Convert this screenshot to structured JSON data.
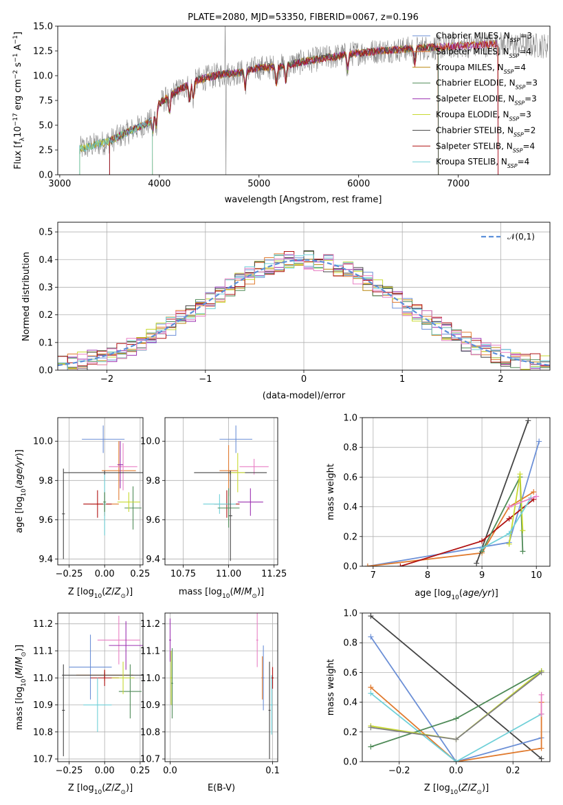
{
  "colors": {
    "miles_chabrier": "#6b8fd6",
    "miles_salpeter": "#e07a2e",
    "miles_kroupa": "#b8860b",
    "elodie_chabrier": "#4e8a57",
    "elodie_salpeter": "#9b30b0",
    "elodie_kroupa": "#c7d92f",
    "stelib_chabrier": "#444444",
    "stelib_salpeter": "#b01010",
    "stelib_kroupa": "#6fd0d8",
    "normal": "#5b8fd9",
    "grid": "#b0b0b0",
    "data": "#808080",
    "pink": "#e87fc4"
  },
  "chart_data": [
    {
      "id": "spectrum",
      "type": "line",
      "title": "PLATE=2080, MJD=53350, FIBERID=0067, z=0.196",
      "xlabel": "wavelength [Angstrom, rest frame]",
      "ylabel": "Flux [f_λ10^-17 erg cm^-2 s^-1 A^-1]",
      "xlim": [
        2980,
        7920
      ],
      "ylim": [
        0,
        15
      ],
      "xticks": [
        3000,
        4000,
        5000,
        6000,
        7000
      ],
      "yticks": [
        0.0,
        2.5,
        5.0,
        7.5,
        10.0,
        12.5,
        15.0
      ],
      "legend_position": "upper right",
      "legend": [
        {
          "label": "Chabrier MILES, N_SSP=3",
          "text": "Chabrier MILES, N",
          "n": "3"
        },
        {
          "label": "Salpeter MILES, N_SSP=4",
          "text": "Salpeter MILES, N",
          "n": "4"
        },
        {
          "label": "Kroupa MILES, N_SSP=4",
          "text": "Kroupa MILES, N",
          "n": "4"
        },
        {
          "label": "Chabrier ELODIE, N_SSP=3",
          "text": "Chabrier ELODIE, N",
          "n": "3"
        },
        {
          "label": "Salpeter ELODIE, N_SSP=3",
          "text": "Salpeter ELODIE, N",
          "n": "3"
        },
        {
          "label": "Kroupa ELODIE, N_SSP=3",
          "text": "Kroupa ELODIE, N",
          "n": "3"
        },
        {
          "label": "Chabrier STELIB, N_SSP=2",
          "text": "Chabrier STELIB, N",
          "n": "2"
        },
        {
          "label": "Salpeter STELIB, N_SSP=4",
          "text": "Salpeter STELIB, N",
          "n": "4"
        },
        {
          "label": "Kroupa STELIB, N_SSP=4",
          "text": "Kroupa STELIB, N",
          "n": "4"
        }
      ],
      "continuum": {
        "x": [
          3200,
          3500,
          3700,
          3900,
          4000,
          4200,
          4400,
          4600,
          4800,
          5000,
          5200,
          5400,
          5600,
          5800,
          6000,
          6200,
          6500,
          6800,
          7000,
          7400,
          7900
        ],
        "y": [
          2.6,
          3.4,
          4.4,
          5.3,
          7.2,
          8.6,
          9.6,
          10.1,
          10.3,
          10.8,
          10.9,
          11.3,
          11.7,
          12.0,
          12.3,
          12.5,
          12.7,
          12.9,
          13.0,
          13.2,
          13.0
        ]
      },
      "model_ranges": [
        [
          3200,
          3930
        ],
        [
          3930,
          6800
        ],
        [
          3200,
          7400
        ],
        [
          3200,
          6800
        ],
        [
          3500,
          7400
        ],
        [
          3200,
          3930
        ],
        [
          3500,
          6800
        ],
        [
          3500,
          7400
        ],
        [
          3200,
          3930
        ]
      ]
    },
    {
      "id": "residuals",
      "type": "step",
      "xlabel": "(data-model)/error",
      "ylabel": "Normed distribution",
      "xlim": [
        -2.5,
        2.5
      ],
      "ylim": [
        0,
        0.535
      ],
      "xticks": [
        -2,
        -1,
        0,
        1,
        2
      ],
      "xticklabels": [
        "−2",
        "−1",
        "0",
        "1",
        "2"
      ],
      "yticks": [
        0.0,
        0.1,
        0.2,
        0.3,
        0.4,
        0.5
      ],
      "legend": "𝒩(0,1)",
      "legend_position": "upper right",
      "bin_edges_start": -2.5,
      "bin_width": 0.1
    },
    {
      "id": "age_vs_z",
      "type": "errorbar",
      "xlabel": "Z [log10(Z/Z⊙)]",
      "ylabel": "age [log10(age/yr)]",
      "xlim": [
        -0.33,
        0.27
      ],
      "ylim": [
        9.37,
        10.12
      ],
      "xticks": [
        -0.25,
        0.0,
        0.25
      ],
      "xticklabels": [
        "−0.25",
        "0.00",
        "0.25"
      ],
      "yticks": [
        9.4,
        9.6,
        9.8,
        10.0
      ],
      "points": [
        {
          "x": -0.01,
          "y": 10.01,
          "xerr": 0.15,
          "yerr": 0.07,
          "c": "miles_chabrier"
        },
        {
          "x": 0.1,
          "y": 9.85,
          "xerr": 0.12,
          "yerr": 0.15,
          "c": "miles_salpeter"
        },
        {
          "x": 0.13,
          "y": 9.87,
          "xerr": 0.1,
          "yerr": 0.12,
          "c": "pink"
        },
        {
          "x": 0.0,
          "y": 9.68,
          "xerr": 0.1,
          "yerr": 0.06,
          "c": "miles_salpeter"
        },
        {
          "x": 0.2,
          "y": 9.66,
          "xerr": 0.06,
          "yerr": 0.11,
          "c": "elodie_chabrier"
        },
        {
          "x": 0.17,
          "y": 9.69,
          "xerr": 0.08,
          "yerr": 0.05,
          "c": "elodie_kroupa"
        },
        {
          "x": 0.11,
          "y": 9.88,
          "xerr": 0.02,
          "yerr": 0.12,
          "c": "elodie_salpeter"
        },
        {
          "x": -0.05,
          "y": 9.68,
          "xerr": 0.1,
          "yerr": 0.07,
          "c": "stelib_salpeter"
        },
        {
          "x": -0.29,
          "y": 9.63,
          "xerr": 0.01,
          "yerr": 0.23,
          "c": "stelib_chabrier"
        },
        {
          "x": 0.0,
          "y": 9.68,
          "xerr": 0.01,
          "yerr": 0.16,
          "c": "stelib_kroupa"
        },
        {
          "x": 0.0,
          "y": 9.84,
          "xerr": 0.29,
          "yerr": 0.01,
          "c": "stelib_chabrier"
        },
        {
          "x": 0.0,
          "y": 9.69,
          "xerr": 0.01,
          "yerr": 0.05,
          "c": "elodie_chabrier"
        }
      ]
    },
    {
      "id": "age_vs_mass",
      "type": "errorbar",
      "xlabel": "mass [log10(M/M⊙)]",
      "xlim": [
        10.65,
        11.27
      ],
      "ylim": [
        9.37,
        10.12
      ],
      "xticks": [
        10.75,
        11.0,
        11.25
      ],
      "xticklabels": [
        "10.75",
        "11.00",
        "11.25"
      ],
      "yticks": [
        9.4,
        9.6,
        9.8,
        10.0
      ],
      "points": [
        {
          "x": 11.04,
          "y": 10.01,
          "xerr": 0.09,
          "yerr": 0.07,
          "c": "miles_chabrier"
        },
        {
          "x": 11.0,
          "y": 9.85,
          "xerr": 0.05,
          "yerr": 0.13,
          "c": "miles_salpeter"
        },
        {
          "x": 11.14,
          "y": 9.87,
          "xerr": 0.08,
          "yerr": 0.04,
          "c": "pink"
        },
        {
          "x": 11.12,
          "y": 9.69,
          "xerr": 0.07,
          "yerr": 0.07,
          "c": "elodie_salpeter"
        },
        {
          "x": 11.01,
          "y": 9.84,
          "xerr": 0.2,
          "yerr": 0.01,
          "c": "stelib_chabrier"
        },
        {
          "x": 10.99,
          "y": 9.68,
          "xerr": 0.07,
          "yerr": 0.07,
          "c": "stelib_salpeter"
        },
        {
          "x": 10.95,
          "y": 9.68,
          "xerr": 0.09,
          "yerr": 0.05,
          "c": "stelib_kroupa"
        },
        {
          "x": 11.0,
          "y": 9.66,
          "xerr": 0.06,
          "yerr": 0.1,
          "c": "elodie_chabrier"
        },
        {
          "x": 11.05,
          "y": 9.84,
          "xerr": 0.04,
          "yerr": 0.1,
          "c": "elodie_kroupa"
        },
        {
          "x": 11.01,
          "y": 9.62,
          "xerr": 0.01,
          "yerr": 0.23,
          "c": "stelib_chabrier"
        }
      ]
    },
    {
      "id": "mass_weight_vs_age",
      "type": "line",
      "xlabel": "age [log10(age/yr)]",
      "ylabel": "mass weight",
      "xlim": [
        6.8,
        10.25
      ],
      "ylim": [
        0,
        1
      ],
      "xticks": [
        7,
        8,
        9,
        10
      ],
      "yticks": [
        0.0,
        0.2,
        0.4,
        0.6,
        0.8,
        1.0
      ],
      "series": [
        {
          "c": "miles_chabrier",
          "x": [
            6.9,
            9.5,
            10.05
          ],
          "y": [
            0.0,
            0.16,
            0.84
          ]
        },
        {
          "c": "miles_salpeter",
          "x": [
            6.9,
            9.0,
            9.5,
            9.95
          ],
          "y": [
            0.0,
            0.09,
            0.4,
            0.5
          ]
        },
        {
          "c": "stelib_chabrier",
          "x": [
            8.9,
            9.85
          ],
          "y": [
            0.02,
            0.98
          ]
        },
        {
          "c": "stelib_salpeter",
          "x": [
            7.5,
            9.0,
            9.5,
            9.95
          ],
          "y": [
            0.0,
            0.17,
            0.32,
            0.45
          ]
        },
        {
          "c": "elodie_chabrier",
          "x": [
            9.0,
            9.7,
            9.75
          ],
          "y": [
            0.1,
            0.6,
            0.1
          ]
        },
        {
          "c": "elodie_kroupa",
          "x": [
            9.5,
            9.7,
            9.75
          ],
          "y": [
            0.15,
            0.62,
            0.24
          ]
        },
        {
          "c": "stelib_kroupa",
          "x": [
            9.0,
            9.5,
            9.9
          ],
          "y": [
            0.12,
            0.22,
            0.46
          ]
        },
        {
          "c": "pink",
          "x": [
            9.5,
            10.0
          ],
          "y": [
            0.4,
            0.47
          ]
        }
      ]
    },
    {
      "id": "mass_vs_z",
      "type": "errorbar",
      "xlabel": "Z [log10(Z/Z⊙)]",
      "ylabel": "mass [log10(M/M⊙)]",
      "xlim": [
        -0.33,
        0.27
      ],
      "ylim": [
        10.69,
        11.24
      ],
      "xticks": [
        -0.25,
        0.0,
        0.25
      ],
      "xticklabels": [
        "−0.25",
        "0.00",
        "0.25"
      ],
      "yticks": [
        10.7,
        10.8,
        10.9,
        11.0,
        11.1,
        11.2
      ],
      "points": [
        {
          "x": -0.1,
          "y": 11.04,
          "xerr": 0.15,
          "yerr": 0.12,
          "c": "miles_chabrier"
        },
        {
          "x": 0.1,
          "y": 11.14,
          "xerr": 0.15,
          "yerr": 0.09,
          "c": "pink"
        },
        {
          "x": 0.15,
          "y": 11.12,
          "xerr": 0.12,
          "yerr": 0.09,
          "c": "elodie_salpeter"
        },
        {
          "x": 0.0,
          "y": 11.01,
          "xerr": 0.2,
          "yerr": 0.02,
          "c": "miles_salpeter"
        },
        {
          "x": 0.0,
          "y": 11.01,
          "xerr": 0.3,
          "yerr": 0.01,
          "c": "stelib_chabrier"
        },
        {
          "x": 0.0,
          "y": 11.0,
          "xerr": 0.1,
          "yerr": 0.03,
          "c": "stelib_salpeter"
        },
        {
          "x": 0.18,
          "y": 10.95,
          "xerr": 0.08,
          "yerr": 0.1,
          "c": "elodie_chabrier"
        },
        {
          "x": -0.05,
          "y": 10.9,
          "xerr": 0.1,
          "yerr": 0.1,
          "c": "stelib_kroupa"
        },
        {
          "x": 0.13,
          "y": 11.0,
          "xerr": 0.08,
          "yerr": 0.06,
          "c": "elodie_kroupa"
        },
        {
          "x": -0.29,
          "y": 10.88,
          "xerr": 0.01,
          "yerr": 0.17,
          "c": "stelib_chabrier"
        }
      ]
    },
    {
      "id": "mass_vs_ebv",
      "type": "errorbar",
      "xlabel": "E(B-V)",
      "xlim": [
        -0.005,
        0.105
      ],
      "ylim": [
        10.69,
        11.24
      ],
      "xticks": [
        0.0,
        0.1
      ],
      "xticklabels": [
        "0.0",
        "0.1"
      ],
      "yticks": [
        10.7,
        10.8,
        10.9,
        11.0,
        11.1,
        11.2
      ],
      "points": [
        {
          "x": 0.0,
          "y": 11.14,
          "xerr": 0.001,
          "yerr": 0.08,
          "c": "elodie_salpeter"
        },
        {
          "x": 0.001,
          "y": 11.0,
          "xerr": 0.001,
          "yerr": 0.1,
          "c": "elodie_kroupa"
        },
        {
          "x": 0.002,
          "y": 10.98,
          "xerr": 0.001,
          "yerr": 0.13,
          "c": "elodie_chabrier"
        },
        {
          "x": 0.085,
          "y": 11.14,
          "xerr": 0.001,
          "yerr": 0.1,
          "c": "pink"
        },
        {
          "x": 0.09,
          "y": 11.0,
          "xerr": 0.001,
          "yerr": 0.08,
          "c": "miles_salpeter"
        },
        {
          "x": 0.091,
          "y": 11.0,
          "xerr": 0.001,
          "yerr": 0.12,
          "c": "miles_chabrier"
        },
        {
          "x": 0.097,
          "y": 10.88,
          "xerr": 0.001,
          "yerr": 0.18,
          "c": "stelib_chabrier"
        },
        {
          "x": 0.099,
          "y": 10.9,
          "xerr": 0.001,
          "yerr": 0.11,
          "c": "stelib_kroupa"
        },
        {
          "x": 0.1,
          "y": 11.0,
          "xerr": 0.001,
          "yerr": 0.04,
          "c": "stelib_salpeter"
        }
      ]
    },
    {
      "id": "mass_weight_vs_z",
      "type": "line",
      "xlabel": "Z [log10(Z/Z⊙)]",
      "ylabel": "mass weight",
      "xlim": [
        -0.33,
        0.33
      ],
      "ylim": [
        0,
        1
      ],
      "xticks": [
        -0.2,
        0.0,
        0.2
      ],
      "xticklabels": [
        "−0.2",
        "0.0",
        "0.2"
      ],
      "yticks": [
        0.0,
        0.2,
        0.4,
        0.6,
        0.8,
        1.0
      ],
      "series": [
        {
          "c": "stelib_chabrier",
          "x": [
            -0.3,
            0.3
          ],
          "y": [
            0.98,
            0.02
          ]
        },
        {
          "c": "miles_chabrier",
          "x": [
            -0.3,
            0.0,
            0.3
          ],
          "y": [
            0.84,
            0.0,
            0.16
          ]
        },
        {
          "c": "miles_salpeter",
          "x": [
            -0.3,
            0.0,
            0.3,
            0.3
          ],
          "y": [
            0.5,
            0.0,
            0.09,
            0.4
          ]
        },
        {
          "c": "stelib_kroupa",
          "x": [
            -0.3,
            0.0,
            0.3
          ],
          "y": [
            0.46,
            0.0,
            0.32
          ]
        },
        {
          "c": "elodie_chabrier",
          "x": [
            -0.3,
            0.0,
            0.3
          ],
          "y": [
            0.1,
            0.29,
            0.61
          ]
        },
        {
          "c": "elodie_kroupa",
          "x": [
            -0.3,
            0.0,
            0.3
          ],
          "y": [
            0.24,
            0.15,
            0.61
          ]
        },
        {
          "c": "data",
          "x": [
            -0.3,
            0.0,
            0.3
          ],
          "y": [
            0.23,
            0.15,
            0.6
          ]
        },
        {
          "c": "pink",
          "x": [
            0.3,
            0.3
          ],
          "y": [
            0.32,
            0.45
          ]
        }
      ]
    }
  ]
}
